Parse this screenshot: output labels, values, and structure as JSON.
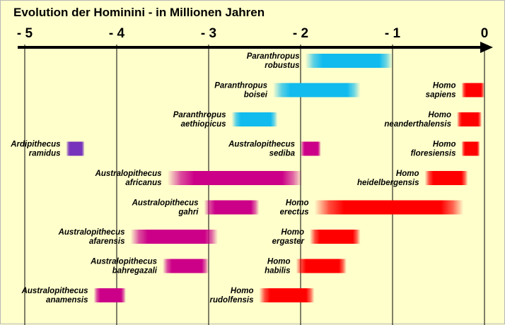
{
  "chart_data": {
    "type": "bar",
    "orientation": "horizontal-range",
    "title": "Evolution der Hominini  -  in Millionen Jahren",
    "xlabel": "",
    "ylabel": "",
    "xlim": [
      -5,
      0
    ],
    "x_ticks": [
      -5,
      -4,
      -3,
      -2,
      -1,
      0
    ],
    "x_tick_labels": [
      "- 5",
      "- 4",
      "- 3",
      "- 2",
      "- 1",
      "0"
    ],
    "axis_position": "top",
    "grid": "vertical",
    "colors": {
      "Ardipithecus": "#7733bb",
      "Australopithecus": "#cc0088",
      "Paranthropus": "#11bbee",
      "Homo": "#ff0000"
    },
    "series": [
      {
        "label": [
          "Paranthropus",
          "robustus"
        ],
        "genus": "Paranthropus",
        "start": -1.95,
        "end": -1.0,
        "row": 1,
        "label_side": "left"
      },
      {
        "label": [
          "Paranthropus",
          "boisei"
        ],
        "genus": "Paranthropus",
        "start": -2.3,
        "end": -1.35,
        "row": 2,
        "label_side": "left"
      },
      {
        "label": [
          "Paranthropus",
          "aethiopicus"
        ],
        "genus": "Paranthropus",
        "start": -2.75,
        "end": -2.25,
        "row": 3,
        "label_side": "left"
      },
      {
        "label": [
          "Ardipithecus",
          "ramidus"
        ],
        "genus": "Ardipithecus",
        "start": -4.55,
        "end": -4.35,
        "row": 4,
        "label_side": "left"
      },
      {
        "label": [
          "Australopithecus",
          "sediba"
        ],
        "genus": "Australopithecus",
        "start": -2.0,
        "end": -1.78,
        "row": 4,
        "label_side": "left"
      },
      {
        "label": [
          "Australopithecus",
          "africanus"
        ],
        "genus": "Australopithecus",
        "start": -3.45,
        "end": -1.98,
        "row": 5,
        "label_side": "left"
      },
      {
        "label": [
          "Australopithecus",
          "gahri"
        ],
        "genus": "Australopithecus",
        "start": -3.05,
        "end": -2.45,
        "row": 6,
        "label_side": "left"
      },
      {
        "label": [
          "Australopithecus",
          "afarensis"
        ],
        "genus": "Australopithecus",
        "start": -3.85,
        "end": -2.9,
        "row": 7,
        "label_side": "left"
      },
      {
        "label": [
          "Australopithecus",
          "bahregazali"
        ],
        "genus": "Australopithecus",
        "start": -3.5,
        "end": -3.0,
        "row": 8,
        "label_side": "left"
      },
      {
        "label": [
          "Australopithecus",
          "anamensis"
        ],
        "genus": "Australopithecus",
        "start": -4.25,
        "end": -3.9,
        "row": 9,
        "label_side": "left"
      },
      {
        "label": [
          "Homo",
          "sapiens"
        ],
        "genus": "Homo",
        "start": -0.25,
        "end": 0.0,
        "row": 2,
        "label_side": "left"
      },
      {
        "label": [
          "Homo",
          "neanderthalensis"
        ],
        "genus": "Homo",
        "start": -0.3,
        "end": -0.03,
        "row": 3,
        "label_side": "left"
      },
      {
        "label": [
          "Homo",
          "floresiensis"
        ],
        "genus": "Homo",
        "start": -0.25,
        "end": -0.05,
        "row": 4,
        "label_side": "left"
      },
      {
        "label": [
          "Homo",
          "heidelbergensis"
        ],
        "genus": "Homo",
        "start": -0.65,
        "end": -0.18,
        "row": 5,
        "label_side": "left"
      },
      {
        "label": [
          "Homo",
          "erectus"
        ],
        "genus": "Homo",
        "start": -1.85,
        "end": -0.23,
        "row": 6,
        "label_side": "left"
      },
      {
        "label": [
          "Homo",
          "ergaster"
        ],
        "genus": "Homo",
        "start": -1.9,
        "end": -1.35,
        "row": 7,
        "label_side": "left"
      },
      {
        "label": [
          "Homo",
          "habilis"
        ],
        "genus": "Homo",
        "start": -2.05,
        "end": -1.5,
        "row": 8,
        "label_side": "left"
      },
      {
        "label": [
          "Homo",
          "rudolfensis"
        ],
        "genus": "Homo",
        "start": -2.45,
        "end": -1.85,
        "row": 9,
        "label_side": "left"
      }
    ]
  }
}
